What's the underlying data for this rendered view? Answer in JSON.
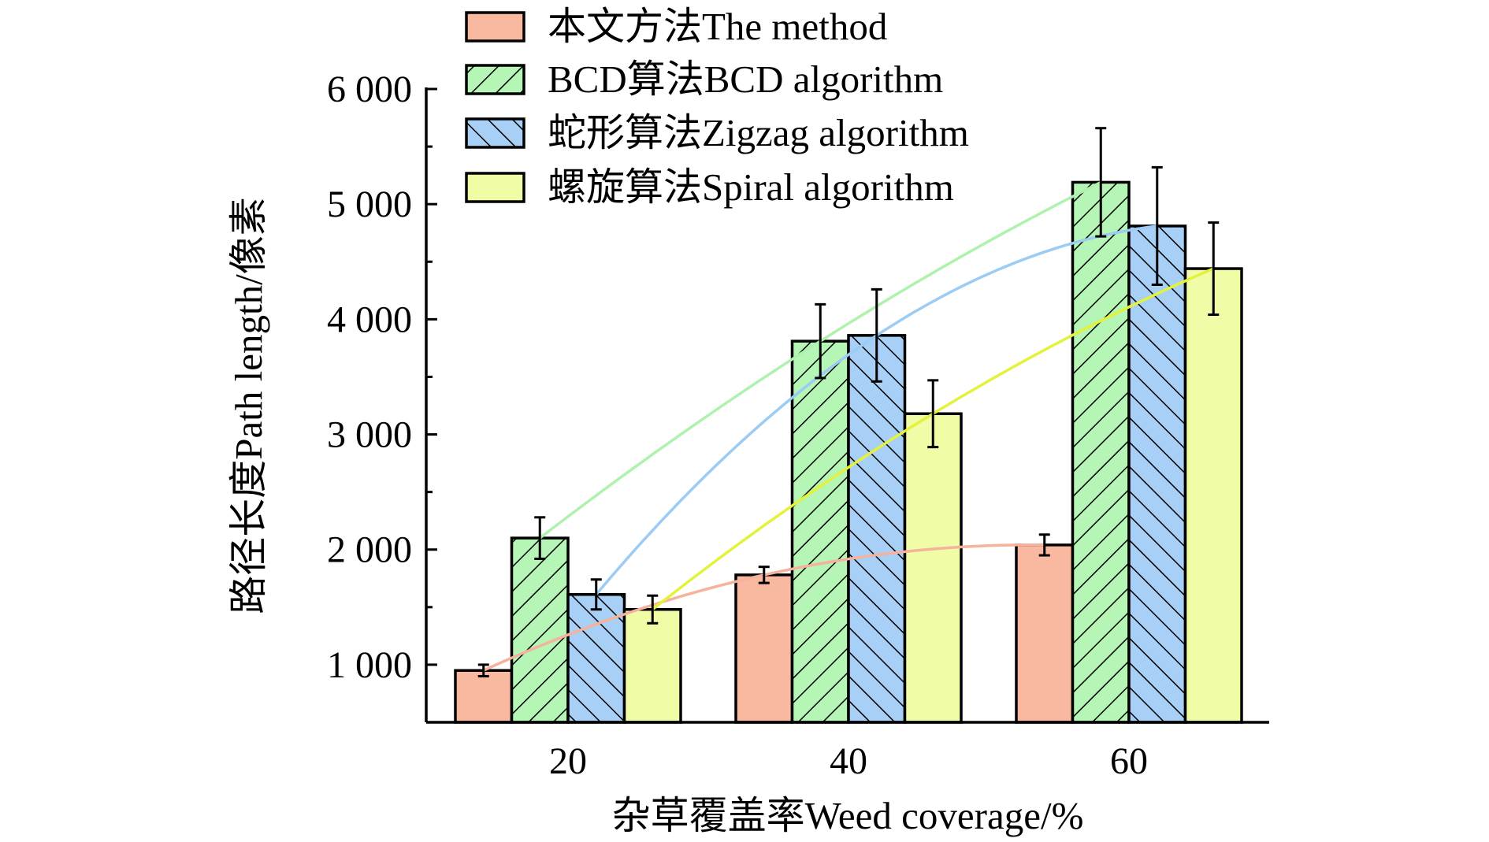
{
  "chart_data": {
    "type": "bar",
    "title": "",
    "xlabel": "杂草覆盖率Weed coverage/%",
    "ylabel": "路径长度Path length/像素",
    "categories": [
      "20",
      "40",
      "60"
    ],
    "ylim": [
      500,
      6000
    ],
    "yticks": [
      1000,
      2000,
      3000,
      4000,
      5000,
      6000
    ],
    "ytick_labels": [
      "1 000",
      "2 000",
      "3 000",
      "4 000",
      "5 000",
      "6 000"
    ],
    "grid": false,
    "legend_position": "top",
    "series": [
      {
        "name": "本文方法The method",
        "values": [
          950,
          1780,
          2040
        ],
        "errors": [
          50,
          70,
          90
        ],
        "color": "#f9b9a0",
        "line_color": "#f5b29c",
        "hatch": "none"
      },
      {
        "name": "BCD算法BCD algorithm",
        "values": [
          2100,
          3810,
          5190
        ],
        "errors": [
          180,
          320,
          470
        ],
        "color": "#b5f5b5",
        "line_color": "#aef2ae",
        "hatch": "forward"
      },
      {
        "name": "蛇形算法Zigzag algorithm",
        "values": [
          1610,
          3860,
          4810
        ],
        "errors": [
          130,
          400,
          510
        ],
        "color": "#a8d0f6",
        "line_color": "#9ccbf3",
        "hatch": "backward"
      },
      {
        "name": "螺旋算法Spiral algorithm",
        "values": [
          1480,
          3180,
          4440
        ],
        "errors": [
          120,
          290,
          400
        ],
        "color": "#f0fca6",
        "line_color": "#e3f23a",
        "hatch": "none"
      }
    ]
  }
}
